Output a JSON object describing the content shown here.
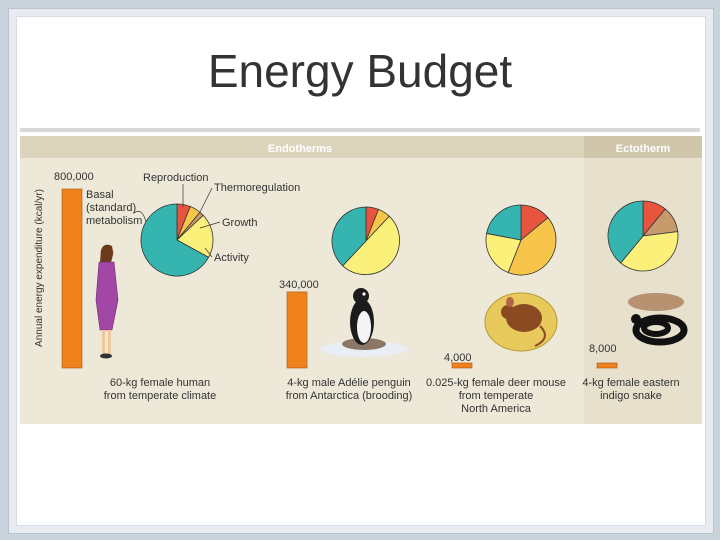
{
  "slide": {
    "title": "Energy Budget"
  },
  "chart_data": {
    "type": "bar",
    "title": "",
    "ylabel": "Annual energy expenditure (kcal/yr)",
    "group_labels": [
      "Endotherms",
      "Ectotherm"
    ],
    "categories": [
      "60-kg female human from temperate climate",
      "4-kg male Adélie penguin from Antarctica (brooding)",
      "0.025-kg female deer mouse from temperate North America",
      "4-kg female eastern indigo snake"
    ],
    "values": [
      800000,
      340000,
      4000,
      8000
    ],
    "value_labels": [
      "800,000",
      "340,000",
      "4,000",
      "8,000"
    ],
    "category_lines": [
      [
        "60-kg female human",
        "from temperate climate"
      ],
      [
        "4-kg male Adélie penguin",
        "from Antarctica (brooding)"
      ],
      [
        "0.025-kg female deer mouse",
        "from temperate",
        "North America"
      ],
      [
        "4-kg female eastern",
        "indigo snake"
      ]
    ],
    "pies": [
      {
        "slices": [
          {
            "label": "Reproduction",
            "value": 6
          },
          {
            "label": "Thermoregulation",
            "value": 5
          },
          {
            "label": "Growth",
            "value": 2
          },
          {
            "label": "Activity",
            "value": 20
          },
          {
            "label": "Basal (standard) metabolism",
            "value": 67
          }
        ]
      },
      {
        "slices": [
          {
            "label": "Reproduction",
            "value": 6
          },
          {
            "label": "Thermoregulation",
            "value": 6
          },
          {
            "label": "Activity",
            "value": 50
          },
          {
            "label": "Basal (standard) metabolism",
            "value": 38
          }
        ]
      },
      {
        "slices": [
          {
            "label": "Reproduction",
            "value": 14
          },
          {
            "label": "Thermoregulation",
            "value": 42
          },
          {
            "label": "Activity",
            "value": 22
          },
          {
            "label": "Basal (standard) metabolism",
            "value": 22
          }
        ]
      },
      {
        "slices": [
          {
            "label": "Reproduction",
            "value": 11
          },
          {
            "label": "Growth",
            "value": 12
          },
          {
            "label": "Activity",
            "value": 38
          },
          {
            "label": "Basal (standard) metabolism",
            "value": 39
          }
        ]
      }
    ],
    "pie_labels": {
      "reproduction": "Reproduction",
      "thermoregulation": "Thermoregulation",
      "growth": "Growth",
      "activity": "Activity",
      "basal": [
        "Basal",
        "(standard)",
        "metabolism"
      ]
    },
    "colors": {
      "reproduction": "#e8553e",
      "thermoregulation": "#f7c54a",
      "growth": "#c79a6b",
      "activity": "#fbf07a",
      "basal": "#36b5b0",
      "bar": "#f0821e",
      "panel": "#ede8d8",
      "header_endo": "#dcd4bd",
      "header_ecto": "#cfc6ab"
    }
  }
}
